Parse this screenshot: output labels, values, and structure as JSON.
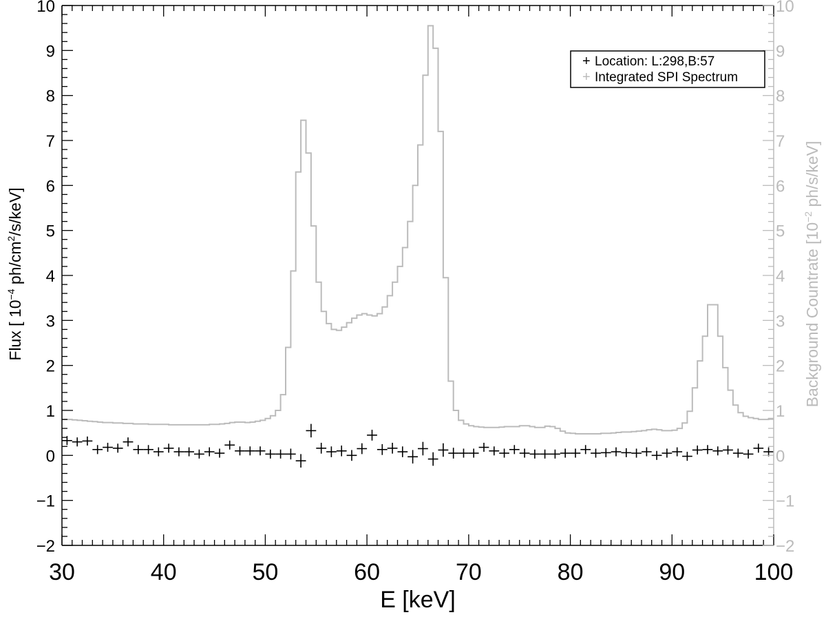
{
  "chart_data": {
    "type": "line",
    "xlabel": "E [keV]",
    "ylabel_left": {
      "main": "Flux [ 10",
      "sup1": "−4",
      "mid": " ph/cm",
      "sup2": "2",
      "tail": "/s/keV]"
    },
    "ylabel_right": {
      "main": "Background Countrate [10",
      "sup1": "−2",
      "tail": " ph/s/keV]"
    },
    "xlim": [
      30,
      100
    ],
    "ylim_left": [
      -2,
      10
    ],
    "ylim_right": [
      -2,
      10
    ],
    "x_ticks": [
      30,
      40,
      50,
      60,
      70,
      80,
      90,
      100
    ],
    "x_tick_labels": [
      "30",
      "40",
      "50",
      "60",
      "70",
      "80",
      "90",
      "100"
    ],
    "y_ticks": [
      -2,
      -1,
      0,
      1,
      2,
      3,
      4,
      5,
      6,
      7,
      8,
      9,
      10
    ],
    "y_tick_labels": [
      "−2",
      "−1",
      "0",
      "1",
      "2",
      "3",
      "4",
      "5",
      "6",
      "7",
      "8",
      "9",
      "10"
    ],
    "legend": {
      "placement": "top-right",
      "entries": [
        {
          "symbol": "+",
          "label": "Location: L:298,B:57",
          "color": "#000000"
        },
        {
          "symbol": "+",
          "label": "Integrated SPI Spectrum",
          "color": "#bbbbbb"
        }
      ]
    },
    "colors": {
      "foreground": "#000000",
      "background_series": "#bbbbbb"
    },
    "series": [
      {
        "name": "Location: L:298,B:57",
        "style": "crosses",
        "x": [
          30.5,
          31.5,
          32.5,
          33.5,
          34.5,
          35.5,
          36.5,
          37.5,
          38.5,
          39.5,
          40.5,
          41.5,
          42.5,
          43.5,
          44.5,
          45.5,
          46.5,
          47.5,
          48.5,
          49.5,
          50.5,
          51.5,
          52.5,
          53.5,
          54.5,
          55.5,
          56.5,
          57.5,
          58.5,
          59.5,
          60.5,
          61.5,
          62.5,
          63.5,
          64.5,
          65.5,
          66.5,
          67.5,
          68.5,
          69.5,
          70.5,
          71.5,
          72.5,
          73.5,
          74.5,
          75.5,
          76.5,
          77.5,
          78.5,
          79.5,
          80.5,
          81.5,
          82.5,
          83.5,
          84.5,
          85.5,
          86.5,
          87.5,
          88.5,
          89.5,
          90.5,
          91.5,
          92.5,
          93.5,
          94.5,
          95.5,
          96.5,
          97.5,
          98.5,
          99.5
        ],
        "y": [
          0.33,
          0.3,
          0.32,
          0.13,
          0.18,
          0.16,
          0.3,
          0.13,
          0.13,
          0.08,
          0.16,
          0.08,
          0.08,
          0.03,
          0.08,
          0.05,
          0.23,
          0.1,
          0.1,
          0.1,
          0.03,
          0.03,
          0.03,
          -0.12,
          0.55,
          0.16,
          0.08,
          0.1,
          0.0,
          0.15,
          0.45,
          0.13,
          0.16,
          0.08,
          -0.03,
          0.15,
          -0.08,
          0.12,
          0.05,
          0.05,
          0.05,
          0.18,
          0.1,
          0.05,
          0.13,
          0.05,
          0.03,
          0.03,
          0.03,
          0.05,
          0.05,
          0.13,
          0.05,
          0.06,
          0.08,
          0.06,
          0.05,
          0.08,
          0.0,
          0.05,
          0.08,
          -0.02,
          0.12,
          0.13,
          0.1,
          0.12,
          0.05,
          0.03,
          0.16,
          0.08
        ],
        "yerr": [
          0.1,
          0.1,
          0.1,
          0.1,
          0.1,
          0.1,
          0.1,
          0.1,
          0.1,
          0.1,
          0.1,
          0.1,
          0.1,
          0.1,
          0.1,
          0.1,
          0.1,
          0.1,
          0.1,
          0.1,
          0.1,
          0.1,
          0.12,
          0.15,
          0.15,
          0.12,
          0.12,
          0.12,
          0.12,
          0.12,
          0.12,
          0.12,
          0.12,
          0.12,
          0.15,
          0.15,
          0.15,
          0.15,
          0.12,
          0.1,
          0.1,
          0.1,
          0.1,
          0.1,
          0.1,
          0.1,
          0.1,
          0.1,
          0.1,
          0.1,
          0.1,
          0.1,
          0.1,
          0.1,
          0.1,
          0.1,
          0.1,
          0.1,
          0.1,
          0.1,
          0.1,
          0.1,
          0.1,
          0.1,
          0.1,
          0.1,
          0.1,
          0.1,
          0.1,
          0.1
        ]
      },
      {
        "name": "Integrated SPI Spectrum",
        "style": "histogram",
        "bin_edges": [
          30.0,
          30.5,
          31.0,
          31.5,
          32.0,
          32.5,
          33.0,
          33.5,
          34.0,
          34.5,
          35.0,
          35.5,
          36.0,
          36.5,
          37.0,
          37.5,
          38.0,
          38.5,
          39.0,
          39.5,
          40.0,
          40.5,
          41.0,
          41.5,
          42.0,
          42.5,
          43.0,
          43.5,
          44.0,
          44.5,
          45.0,
          45.5,
          46.0,
          46.5,
          47.0,
          47.5,
          48.0,
          48.5,
          49.0,
          49.5,
          50.0,
          50.5,
          51.0,
          51.5,
          52.0,
          52.5,
          53.0,
          53.5,
          54.0,
          54.5,
          55.0,
          55.5,
          56.0,
          56.5,
          57.0,
          57.5,
          58.0,
          58.5,
          59.0,
          59.5,
          60.0,
          60.5,
          61.0,
          61.5,
          62.0,
          62.5,
          63.0,
          63.5,
          64.0,
          64.5,
          65.0,
          65.5,
          66.0,
          66.5,
          67.0,
          67.5,
          68.0,
          68.5,
          69.0,
          69.5,
          70.0,
          70.5,
          71.0,
          71.5,
          72.0,
          72.5,
          73.0,
          73.5,
          74.0,
          74.5,
          75.0,
          75.5,
          76.0,
          76.5,
          77.0,
          77.5,
          78.0,
          78.5,
          79.0,
          79.5,
          80.0,
          80.5,
          81.0,
          81.5,
          82.0,
          82.5,
          83.0,
          83.5,
          84.0,
          84.5,
          85.0,
          85.5,
          86.0,
          86.5,
          87.0,
          87.5,
          88.0,
          88.5,
          89.0,
          89.5,
          90.0,
          90.5,
          91.0,
          91.5,
          92.0,
          92.5,
          93.0,
          93.5,
          94.0,
          94.5,
          95.0,
          95.5,
          96.0,
          96.5,
          97.0,
          97.5,
          98.0,
          98.5,
          99.0,
          99.5,
          100.0
        ],
        "values": [
          0.8,
          0.8,
          0.79,
          0.78,
          0.77,
          0.76,
          0.75,
          0.74,
          0.73,
          0.73,
          0.72,
          0.72,
          0.71,
          0.71,
          0.7,
          0.7,
          0.7,
          0.69,
          0.69,
          0.69,
          0.69,
          0.68,
          0.68,
          0.68,
          0.68,
          0.68,
          0.68,
          0.68,
          0.68,
          0.69,
          0.69,
          0.7,
          0.71,
          0.73,
          0.74,
          0.74,
          0.73,
          0.74,
          0.76,
          0.78,
          0.82,
          0.88,
          1.0,
          1.35,
          2.4,
          4.1,
          6.3,
          7.45,
          6.72,
          5.1,
          3.85,
          3.2,
          2.93,
          2.8,
          2.78,
          2.85,
          2.95,
          3.05,
          3.12,
          3.15,
          3.12,
          3.1,
          3.15,
          3.3,
          3.55,
          3.85,
          4.2,
          4.62,
          5.2,
          6.0,
          6.9,
          8.45,
          9.55,
          9.05,
          7.2,
          3.95,
          1.65,
          1.0,
          0.78,
          0.7,
          0.66,
          0.64,
          0.63,
          0.62,
          0.62,
          0.62,
          0.63,
          0.64,
          0.64,
          0.64,
          0.66,
          0.66,
          0.64,
          0.62,
          0.62,
          0.65,
          0.64,
          0.6,
          0.54,
          0.5,
          0.49,
          0.48,
          0.48,
          0.48,
          0.48,
          0.48,
          0.49,
          0.49,
          0.5,
          0.51,
          0.52,
          0.52,
          0.53,
          0.54,
          0.55,
          0.57,
          0.58,
          0.57,
          0.55,
          0.55,
          0.56,
          0.6,
          0.72,
          0.98,
          1.5,
          2.1,
          2.65,
          3.35,
          3.35,
          2.65,
          1.95,
          1.45,
          1.12,
          0.95,
          0.87,
          0.84,
          0.82,
          0.8,
          0.8,
          0.82
        ]
      }
    ]
  }
}
